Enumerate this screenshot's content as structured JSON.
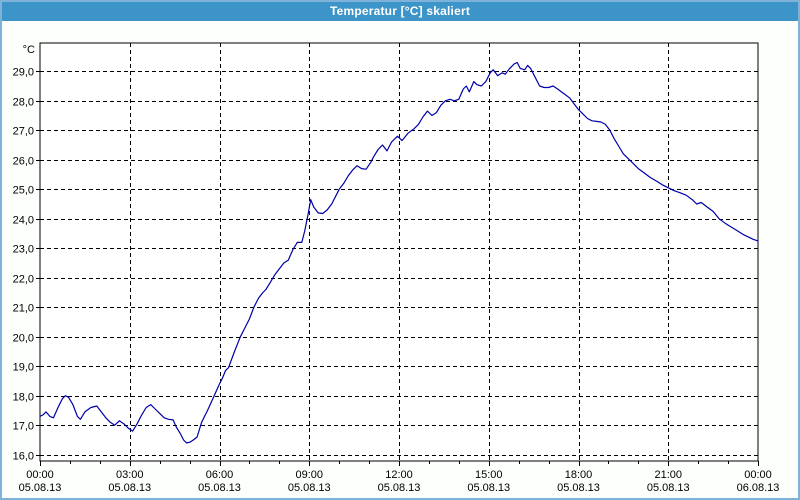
{
  "window": {
    "title": "Temperatur [°C] skaliert"
  },
  "colors": {
    "titlebar_bg": "#3d94c8",
    "titlebar_text": "#ffffff",
    "window_border": "#7fb2d8",
    "content_bg": "#fcfffc",
    "plot_bg": "#ffffff",
    "axis": "#000000",
    "grid": "#000000",
    "line": "#0000a8"
  },
  "chart_data": {
    "type": "line",
    "title": "Temperatur [°C] skaliert",
    "ylabel": "°C",
    "xlabel": "",
    "ylim": [
      15.8,
      30.0
    ],
    "xlim_hours": [
      0,
      24
    ],
    "grid": "dashed",
    "legend": "none",
    "y_ticks": [
      {
        "value": 29,
        "label": "29,0"
      },
      {
        "value": 28,
        "label": "28,0"
      },
      {
        "value": 27,
        "label": "27,0"
      },
      {
        "value": 26,
        "label": "26,0"
      },
      {
        "value": 25,
        "label": "25,0"
      },
      {
        "value": 24,
        "label": "24,0"
      },
      {
        "value": 23,
        "label": "23,0"
      },
      {
        "value": 22,
        "label": "22,0"
      },
      {
        "value": 21,
        "label": "21,0"
      },
      {
        "value": 20,
        "label": "20,0"
      },
      {
        "value": 19,
        "label": "19,0"
      },
      {
        "value": 18,
        "label": "18,0"
      },
      {
        "value": 17,
        "label": "17,0"
      },
      {
        "value": 16,
        "label": "16,0"
      }
    ],
    "x_ticks": [
      {
        "hour": 0,
        "time": "00:00",
        "date": "05.08.13"
      },
      {
        "hour": 3,
        "time": "03:00",
        "date": "05.08.13"
      },
      {
        "hour": 6,
        "time": "06:00",
        "date": "05.08.13"
      },
      {
        "hour": 9,
        "time": "09:00",
        "date": "05.08.13"
      },
      {
        "hour": 12,
        "time": "12:00",
        "date": "05.08.13"
      },
      {
        "hour": 15,
        "time": "15:00",
        "date": "05.08.13"
      },
      {
        "hour": 18,
        "time": "18:00",
        "date": "05.08.13"
      },
      {
        "hour": 21,
        "time": "21:00",
        "date": "05.08.13"
      },
      {
        "hour": 24,
        "time": "00:00",
        "date": "06.08.13"
      }
    ],
    "minor_x_tick_every_hours": 1,
    "series": [
      {
        "name": "Temperatur",
        "points": [
          [
            0,
            17.3
          ],
          [
            0.1,
            17.35
          ],
          [
            0.2,
            17.45
          ],
          [
            0.33,
            17.3
          ],
          [
            0.45,
            17.25
          ],
          [
            0.6,
            17.6
          ],
          [
            0.75,
            17.9
          ],
          [
            0.85,
            18.0
          ],
          [
            0.95,
            17.95
          ],
          [
            1.1,
            17.7
          ],
          [
            1.25,
            17.3
          ],
          [
            1.35,
            17.2
          ],
          [
            1.5,
            17.45
          ],
          [
            1.7,
            17.6
          ],
          [
            1.9,
            17.65
          ],
          [
            2.05,
            17.45
          ],
          [
            2.2,
            17.25
          ],
          [
            2.35,
            17.1
          ],
          [
            2.5,
            17.0
          ],
          [
            2.65,
            17.15
          ],
          [
            2.8,
            17.05
          ],
          [
            2.95,
            16.9
          ],
          [
            3.1,
            16.8
          ],
          [
            3.25,
            17.05
          ],
          [
            3.4,
            17.35
          ],
          [
            3.55,
            17.6
          ],
          [
            3.7,
            17.7
          ],
          [
            3.85,
            17.55
          ],
          [
            4.0,
            17.4
          ],
          [
            4.15,
            17.25
          ],
          [
            4.3,
            17.2
          ],
          [
            4.45,
            17.18
          ],
          [
            4.55,
            16.95
          ],
          [
            4.7,
            16.7
          ],
          [
            4.8,
            16.5
          ],
          [
            4.9,
            16.4
          ],
          [
            5.0,
            16.42
          ],
          [
            5.1,
            16.48
          ],
          [
            5.25,
            16.6
          ],
          [
            5.4,
            17.1
          ],
          [
            5.6,
            17.5
          ],
          [
            5.8,
            17.95
          ],
          [
            6.0,
            18.4
          ],
          [
            6.1,
            18.6
          ],
          [
            6.2,
            18.85
          ],
          [
            6.3,
            18.95
          ],
          [
            6.5,
            19.5
          ],
          [
            6.7,
            20.0
          ],
          [
            6.85,
            20.3
          ],
          [
            7.0,
            20.6
          ],
          [
            7.15,
            21.0
          ],
          [
            7.3,
            21.3
          ],
          [
            7.45,
            21.5
          ],
          [
            7.55,
            21.6
          ],
          [
            7.7,
            21.85
          ],
          [
            7.85,
            22.1
          ],
          [
            8.0,
            22.3
          ],
          [
            8.15,
            22.5
          ],
          [
            8.3,
            22.6
          ],
          [
            8.45,
            22.95
          ],
          [
            8.6,
            23.2
          ],
          [
            8.75,
            23.2
          ],
          [
            8.85,
            23.6
          ],
          [
            8.95,
            24.1
          ],
          [
            9.05,
            24.65
          ],
          [
            9.15,
            24.4
          ],
          [
            9.3,
            24.2
          ],
          [
            9.45,
            24.18
          ],
          [
            9.6,
            24.3
          ],
          [
            9.75,
            24.5
          ],
          [
            9.9,
            24.8
          ],
          [
            10.0,
            25.0
          ],
          [
            10.15,
            25.2
          ],
          [
            10.3,
            25.45
          ],
          [
            10.45,
            25.65
          ],
          [
            10.6,
            25.8
          ],
          [
            10.75,
            25.7
          ],
          [
            10.9,
            25.68
          ],
          [
            11.05,
            25.9
          ],
          [
            11.15,
            26.1
          ],
          [
            11.3,
            26.35
          ],
          [
            11.45,
            26.5
          ],
          [
            11.6,
            26.3
          ],
          [
            11.75,
            26.6
          ],
          [
            11.95,
            26.8
          ],
          [
            12.1,
            26.65
          ],
          [
            12.3,
            26.9
          ],
          [
            12.5,
            27.05
          ],
          [
            12.65,
            27.2
          ],
          [
            12.8,
            27.45
          ],
          [
            12.95,
            27.65
          ],
          [
            13.1,
            27.5
          ],
          [
            13.25,
            27.6
          ],
          [
            13.4,
            27.85
          ],
          [
            13.55,
            28.0
          ],
          [
            13.7,
            28.05
          ],
          [
            13.85,
            28.0
          ],
          [
            14.0,
            28.05
          ],
          [
            14.15,
            28.4
          ],
          [
            14.25,
            28.5
          ],
          [
            14.35,
            28.3
          ],
          [
            14.5,
            28.65
          ],
          [
            14.6,
            28.55
          ],
          [
            14.75,
            28.5
          ],
          [
            14.9,
            28.65
          ],
          [
            15.05,
            28.95
          ],
          [
            15.15,
            29.05
          ],
          [
            15.3,
            28.85
          ],
          [
            15.45,
            28.95
          ],
          [
            15.55,
            28.9
          ],
          [
            15.7,
            29.1
          ],
          [
            15.85,
            29.25
          ],
          [
            15.95,
            29.3
          ],
          [
            16.05,
            29.1
          ],
          [
            16.2,
            29.05
          ],
          [
            16.3,
            29.2
          ],
          [
            16.4,
            29.1
          ],
          [
            16.55,
            28.8
          ],
          [
            16.7,
            28.5
          ],
          [
            16.85,
            28.45
          ],
          [
            17.0,
            28.45
          ],
          [
            17.15,
            28.5
          ],
          [
            17.3,
            28.4
          ],
          [
            17.5,
            28.25
          ],
          [
            17.7,
            28.1
          ],
          [
            17.85,
            27.9
          ],
          [
            18.0,
            27.7
          ],
          [
            18.15,
            27.55
          ],
          [
            18.3,
            27.4
          ],
          [
            18.45,
            27.32
          ],
          [
            18.6,
            27.3
          ],
          [
            18.75,
            27.28
          ],
          [
            18.9,
            27.2
          ],
          [
            19.05,
            27.0
          ],
          [
            19.2,
            26.7
          ],
          [
            19.35,
            26.45
          ],
          [
            19.5,
            26.2
          ],
          [
            19.65,
            26.05
          ],
          [
            19.8,
            25.9
          ],
          [
            20.0,
            25.7
          ],
          [
            20.2,
            25.55
          ],
          [
            20.4,
            25.4
          ],
          [
            20.6,
            25.28
          ],
          [
            20.8,
            25.15
          ],
          [
            21.0,
            25.05
          ],
          [
            21.2,
            24.95
          ],
          [
            21.4,
            24.88
          ],
          [
            21.6,
            24.8
          ],
          [
            21.8,
            24.65
          ],
          [
            21.95,
            24.5
          ],
          [
            22.1,
            24.55
          ],
          [
            22.3,
            24.4
          ],
          [
            22.5,
            24.25
          ],
          [
            22.7,
            24.0
          ],
          [
            22.9,
            23.85
          ],
          [
            23.1,
            23.72
          ],
          [
            23.3,
            23.6
          ],
          [
            23.5,
            23.47
          ],
          [
            23.7,
            23.37
          ],
          [
            23.85,
            23.3
          ],
          [
            24.0,
            23.25
          ]
        ]
      }
    ]
  }
}
